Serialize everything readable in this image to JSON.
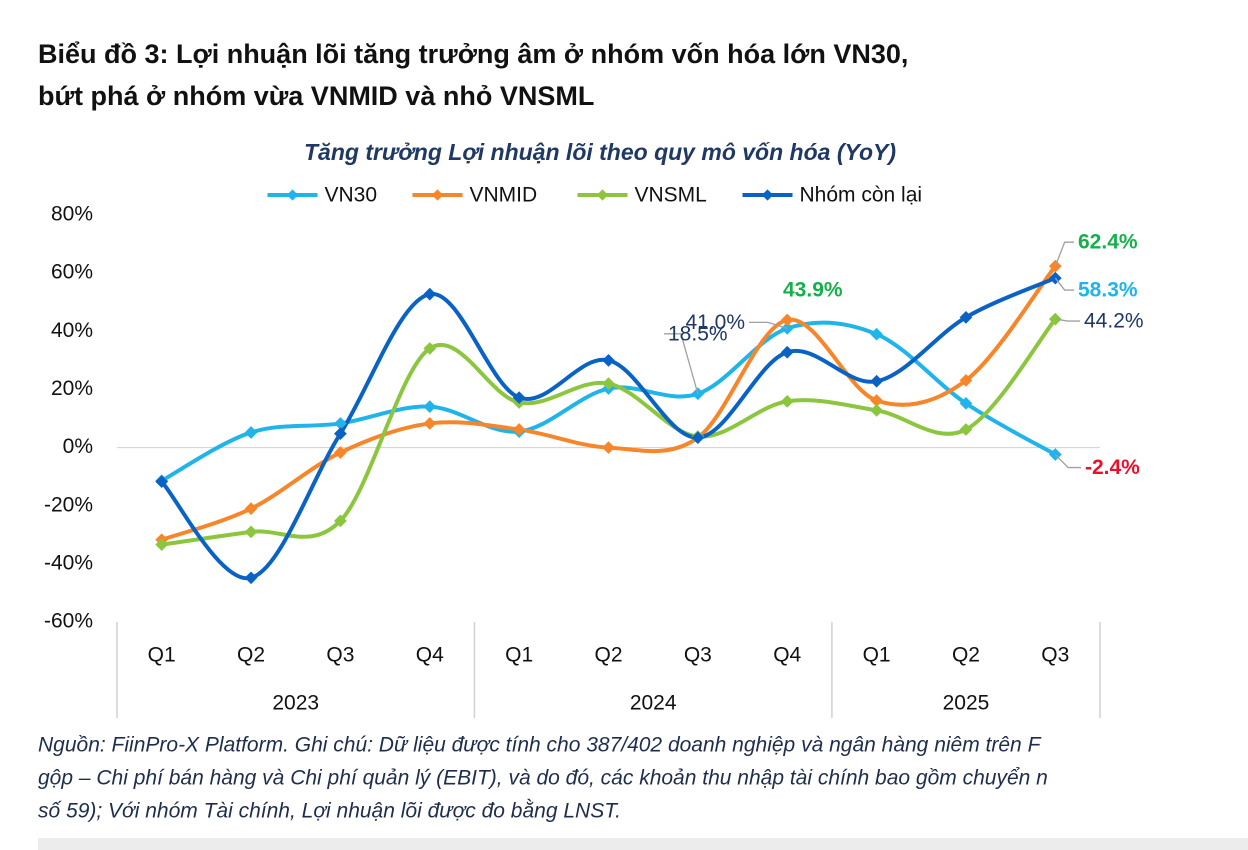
{
  "header": {
    "title_lines": [
      "Biểu đồ 3: Lợi nhuận lõi tăng trưởng âm ở nhóm vốn hóa lớn VN30,",
      "bứt phá ở nhóm vừa VNMID và nhỏ VNSML"
    ]
  },
  "chart_data": {
    "type": "line",
    "title": "Tăng trưởng Lợi nhuận lõi theo quy mô vốn hóa (YoY)",
    "smooth": true,
    "legend": "top",
    "categories": [
      "Q1",
      "Q2",
      "Q3",
      "Q4",
      "Q1",
      "Q2",
      "Q3",
      "Q4",
      "Q1",
      "Q2",
      "Q3"
    ],
    "groups": [
      {
        "name": "2023",
        "span": 4
      },
      {
        "name": "2024",
        "span": 4
      },
      {
        "name": "2025",
        "span": 3
      }
    ],
    "ylim": [
      -60,
      80
    ],
    "yticks": [
      {
        "value": -60,
        "label": "-60%"
      },
      {
        "value": -40,
        "label": "-40%"
      },
      {
        "value": -20,
        "label": "-20%"
      },
      {
        "value": 0,
        "label": "0%"
      },
      {
        "value": 20,
        "label": "20%"
      },
      {
        "value": 40,
        "label": "40%"
      },
      {
        "value": 60,
        "label": "60%"
      },
      {
        "value": 80,
        "label": "80%"
      }
    ],
    "series": [
      {
        "name": "VN30",
        "color": "#1fb4ea",
        "values": [
          -11.4,
          5.2,
          8.3,
          14.1,
          5.5,
          20.3,
          18.5,
          41.0,
          39.0,
          15.2,
          -2.4
        ],
        "value_labels": [
          null,
          null,
          null,
          null,
          null,
          null,
          "18.5%",
          "41.0%",
          null,
          null,
          "-2.4%"
        ],
        "value_label_colors": [
          null,
          null,
          null,
          null,
          null,
          null,
          "#1f3864",
          "#1f3864",
          null,
          null,
          "#e8112d"
        ]
      },
      {
        "name": "VNMID",
        "color": "#f7862a",
        "values": [
          -31.7,
          -21.0,
          -1.7,
          8.3,
          6.2,
          0.0,
          3.4,
          43.9,
          16.2,
          23.1,
          62.4
        ],
        "value_labels": [
          null,
          null,
          null,
          null,
          null,
          null,
          null,
          "43.9%",
          null,
          null,
          "62.4%"
        ],
        "value_label_colors": [
          null,
          null,
          null,
          null,
          null,
          null,
          null,
          "#16b04a",
          null,
          null,
          "#16b04a"
        ]
      },
      {
        "name": "VNSML",
        "color": "#8cc63f",
        "values": [
          -33.4,
          -29.0,
          -25.2,
          34.1,
          15.5,
          22.0,
          3.8,
          15.9,
          12.8,
          6.2,
          44.2
        ],
        "value_labels": [
          null,
          null,
          null,
          null,
          null,
          null,
          null,
          null,
          null,
          null,
          "44.2%"
        ],
        "value_label_colors": [
          null,
          null,
          null,
          null,
          null,
          null,
          null,
          null,
          null,
          null,
          "#1f3864"
        ]
      },
      {
        "name": "Nhóm còn lại",
        "color": "#0a63c4",
        "values": [
          -11.7,
          -44.8,
          4.8,
          52.8,
          17.2,
          30.0,
          3.4,
          32.8,
          22.8,
          44.8,
          58.3
        ],
        "value_labels": [
          null,
          null,
          null,
          null,
          null,
          null,
          null,
          null,
          null,
          null,
          "58.3%"
        ],
        "value_label_colors": [
          null,
          null,
          null,
          null,
          null,
          null,
          null,
          null,
          null,
          null,
          "#1fb4ea"
        ]
      }
    ]
  },
  "footnote": {
    "lines": [
      "Nguồn: FiinPro-X Platform. Ghi chú: Dữ liệu được tính cho 387/402 doanh nghiệp và ngân hàng niêm trên F",
      "gộp – Chi phí bán hàng và Chi phí quản lý (EBIT), và do đó, các khoản thu nhập tài chính bao gồm chuyển n",
      "số 59); Với nhóm Tài chính, Lợi nhuận lõi được đo bằng LNST."
    ]
  }
}
